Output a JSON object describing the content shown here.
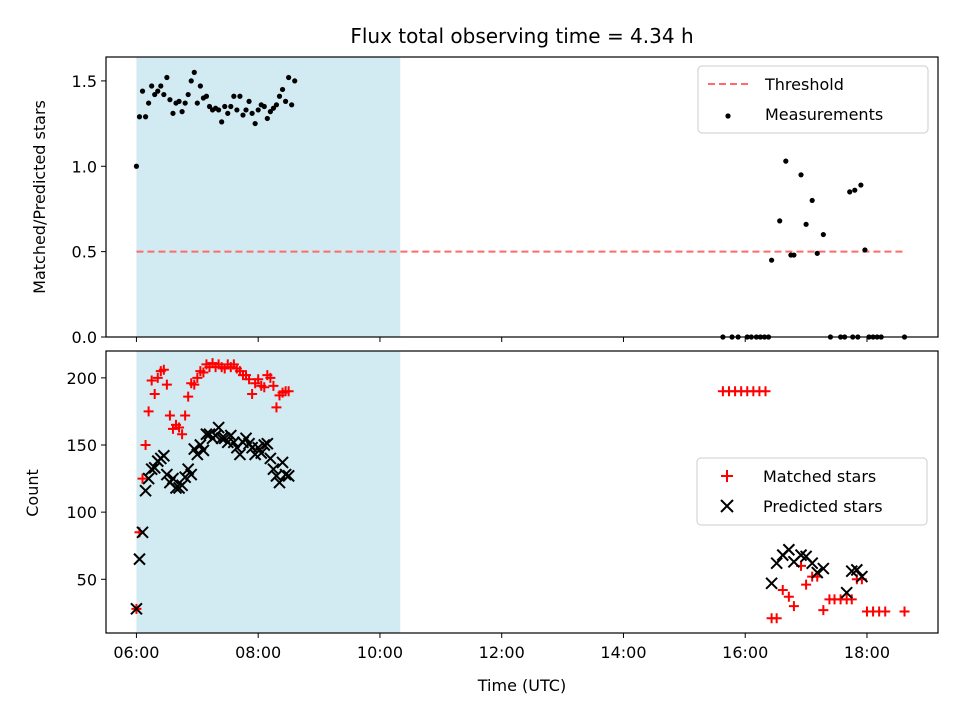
{
  "chart_data": [
    {
      "type": "scatter",
      "title": "Flux total observing time = 4.34 h",
      "xlabel": "",
      "ylabel": "Matched/Predicted stars",
      "xlim": [
        "05:30",
        "19:10"
      ],
      "ylim": [
        0,
        1.64
      ],
      "yticks": [
        0,
        0.5,
        1.0,
        1.5
      ],
      "ytick_labels": [
        "0.0",
        "0.5",
        "1.0",
        "1.5"
      ],
      "shaded_interval": [
        "06:00",
        "10:20"
      ],
      "shade_color": "#add8e6",
      "legend_position": "upper right",
      "legend": [
        "Threshold",
        "Measurements"
      ],
      "series": [
        {
          "name": "Threshold",
          "style": "dashed-line",
          "color": "#ff6a6a",
          "points": [
            [
              "06:00",
              0.5
            ],
            [
              "18:37",
              0.5
            ]
          ]
        },
        {
          "name": "Measurements",
          "style": "dot",
          "color": "#000000",
          "points": [
            [
              "06:00",
              1.0
            ],
            [
              "06:03",
              1.29
            ],
            [
              "06:06",
              1.44
            ],
            [
              "06:09",
              1.29
            ],
            [
              "06:12",
              1.37
            ],
            [
              "06:15",
              1.47
            ],
            [
              "06:18",
              1.42
            ],
            [
              "06:21",
              1.44
            ],
            [
              "06:24",
              1.47
            ],
            [
              "06:27",
              1.42
            ],
            [
              "06:30",
              1.52
            ],
            [
              "06:33",
              1.39
            ],
            [
              "06:36",
              1.31
            ],
            [
              "06:39",
              1.37
            ],
            [
              "06:42",
              1.38
            ],
            [
              "06:45",
              1.32
            ],
            [
              "06:48",
              1.37
            ],
            [
              "06:51",
              1.42
            ],
            [
              "06:54",
              1.5
            ],
            [
              "06:57",
              1.55
            ],
            [
              "07:00",
              1.37
            ],
            [
              "07:03",
              1.47
            ],
            [
              "07:06",
              1.4
            ],
            [
              "07:09",
              1.41
            ],
            [
              "07:12",
              1.35
            ],
            [
              "07:15",
              1.33
            ],
            [
              "07:18",
              1.34
            ],
            [
              "07:21",
              1.33
            ],
            [
              "07:24",
              1.26
            ],
            [
              "07:27",
              1.35
            ],
            [
              "07:30",
              1.31
            ],
            [
              "07:33",
              1.35
            ],
            [
              "07:36",
              1.41
            ],
            [
              "07:39",
              1.33
            ],
            [
              "07:42",
              1.41
            ],
            [
              "07:45",
              1.3
            ],
            [
              "07:48",
              1.33
            ],
            [
              "07:51",
              1.38
            ],
            [
              "07:54",
              1.31
            ],
            [
              "07:57",
              1.25
            ],
            [
              "08:00",
              1.33
            ],
            [
              "08:03",
              1.36
            ],
            [
              "08:06",
              1.35
            ],
            [
              "08:09",
              1.28
            ],
            [
              "08:12",
              1.32
            ],
            [
              "08:15",
              1.34
            ],
            [
              "08:18",
              1.36
            ],
            [
              "08:21",
              1.41
            ],
            [
              "08:24",
              1.45
            ],
            [
              "08:27",
              1.38
            ],
            [
              "08:30",
              1.52
            ],
            [
              "08:33",
              1.36
            ],
            [
              "08:36",
              1.5
            ],
            [
              "15:38",
              0.0
            ],
            [
              "15:47",
              0.0
            ],
            [
              "15:53",
              0.0
            ],
            [
              "16:02",
              0.0
            ],
            [
              "16:06",
              0.0
            ],
            [
              "16:11",
              0.0
            ],
            [
              "16:15",
              0.0
            ],
            [
              "16:19",
              0.0
            ],
            [
              "16:23",
              0.0
            ],
            [
              "16:26",
              0.45
            ],
            [
              "16:34",
              0.68
            ],
            [
              "16:40",
              1.03
            ],
            [
              "16:45",
              0.48
            ],
            [
              "16:48",
              0.48
            ],
            [
              "16:55",
              0.95
            ],
            [
              "17:00",
              0.66
            ],
            [
              "17:06",
              0.8
            ],
            [
              "17:11",
              0.49
            ],
            [
              "17:17",
              0.6
            ],
            [
              "17:24",
              0.0
            ],
            [
              "17:34",
              0.0
            ],
            [
              "17:38",
              0.0
            ],
            [
              "17:43",
              0.85
            ],
            [
              "17:46",
              0.0
            ],
            [
              "17:48",
              0.86
            ],
            [
              "17:51",
              0.0
            ],
            [
              "17:54",
              0.89
            ],
            [
              "17:58",
              0.51
            ],
            [
              "18:02",
              0.0
            ],
            [
              "18:06",
              0.0
            ],
            [
              "18:10",
              0.0
            ],
            [
              "18:14",
              0.0
            ],
            [
              "18:37",
              0.0
            ]
          ]
        }
      ]
    },
    {
      "type": "scatter",
      "title": "",
      "xlabel": "Time (UTC)",
      "ylabel": "Count",
      "xlim": [
        "05:30",
        "19:10"
      ],
      "ylim": [
        10,
        220
      ],
      "yticks": [
        50,
        100,
        150,
        200
      ],
      "ytick_labels": [
        "50",
        "100",
        "150",
        "200"
      ],
      "xticks": [
        "06:00",
        "08:00",
        "10:00",
        "12:00",
        "14:00",
        "16:00",
        "18:00"
      ],
      "shaded_interval": [
        "06:00",
        "10:20"
      ],
      "shade_color": "#add8e6",
      "legend_position": "center right",
      "legend": [
        "Matched stars",
        "Predicted stars"
      ],
      "series": [
        {
          "name": "Matched stars",
          "marker": "plus",
          "color": "#ff0000",
          "points": [
            [
              "06:00",
              28
            ],
            [
              "06:03",
              85
            ],
            [
              "06:06",
              125
            ],
            [
              "06:09",
              150
            ],
            [
              "06:12",
              175
            ],
            [
              "06:15",
              198
            ],
            [
              "06:18",
              188
            ],
            [
              "06:21",
              200
            ],
            [
              "06:24",
              205
            ],
            [
              "06:27",
              206
            ],
            [
              "06:30",
              195
            ],
            [
              "06:33",
              172
            ],
            [
              "06:36",
              162
            ],
            [
              "06:39",
              165
            ],
            [
              "06:42",
              163
            ],
            [
              "06:45",
              158
            ],
            [
              "06:48",
              172
            ],
            [
              "06:51",
              186
            ],
            [
              "06:54",
              196
            ],
            [
              "06:57",
              195
            ],
            [
              "07:00",
              200
            ],
            [
              "07:03",
              205
            ],
            [
              "07:06",
              204
            ],
            [
              "07:09",
              210
            ],
            [
              "07:12",
              208
            ],
            [
              "07:15",
              211
            ],
            [
              "07:18",
              208
            ],
            [
              "07:21",
              210
            ],
            [
              "07:24",
              208
            ],
            [
              "07:27",
              207
            ],
            [
              "07:30",
              210
            ],
            [
              "07:33",
              208
            ],
            [
              "07:36",
              210
            ],
            [
              "07:39",
              207
            ],
            [
              "07:42",
              205
            ],
            [
              "07:45",
              202
            ],
            [
              "07:48",
              202
            ],
            [
              "07:51",
              199
            ],
            [
              "07:54",
              188
            ],
            [
              "07:57",
              196
            ],
            [
              "08:00",
              199
            ],
            [
              "08:03",
              194
            ],
            [
              "08:06",
              193
            ],
            [
              "08:09",
              202
            ],
            [
              "08:12",
              200
            ],
            [
              "08:15",
              194
            ],
            [
              "08:18",
              178
            ],
            [
              "08:21",
              187
            ],
            [
              "08:24",
              189
            ],
            [
              "08:27",
              190
            ],
            [
              "08:30",
              190
            ],
            [
              "15:38",
              190
            ],
            [
              "15:44",
              190
            ],
            [
              "15:50",
              190
            ],
            [
              "15:56",
              190
            ],
            [
              "16:02",
              190
            ],
            [
              "16:08",
              190
            ],
            [
              "16:14",
              190
            ],
            [
              "16:20",
              190
            ],
            [
              "16:26",
              21
            ],
            [
              "16:31",
              21
            ],
            [
              "16:37",
              42
            ],
            [
              "16:43",
              37
            ],
            [
              "16:48",
              30
            ],
            [
              "16:55",
              60
            ],
            [
              "17:00",
              46
            ],
            [
              "17:06",
              52
            ],
            [
              "17:11",
              52
            ],
            [
              "17:17",
              27
            ],
            [
              "17:23",
              35
            ],
            [
              "17:28",
              35
            ],
            [
              "17:34",
              35
            ],
            [
              "17:40",
              35
            ],
            [
              "17:45",
              35
            ],
            [
              "17:50",
              50
            ],
            [
              "17:55",
              50
            ],
            [
              "18:00",
              26
            ],
            [
              "18:06",
              26
            ],
            [
              "18:12",
              26
            ],
            [
              "18:18",
              26
            ],
            [
              "18:37",
              26
            ]
          ]
        },
        {
          "name": "Predicted stars",
          "marker": "x",
          "color": "#000000",
          "points": [
            [
              "06:00",
              28
            ],
            [
              "06:03",
              65
            ],
            [
              "06:06",
              85
            ],
            [
              "06:09",
              116
            ],
            [
              "06:12",
              125
            ],
            [
              "06:15",
              132
            ],
            [
              "06:18",
              133
            ],
            [
              "06:21",
              138
            ],
            [
              "06:24",
              140
            ],
            [
              "06:27",
              142
            ],
            [
              "06:30",
              128
            ],
            [
              "06:33",
              122
            ],
            [
              "06:36",
              125
            ],
            [
              "06:39",
              118
            ],
            [
              "06:42",
              118
            ],
            [
              "06:45",
              120
            ],
            [
              "06:48",
              126
            ],
            [
              "06:51",
              132
            ],
            [
              "06:54",
              128
            ],
            [
              "06:57",
              147
            ],
            [
              "07:00",
              143
            ],
            [
              "07:03",
              150
            ],
            [
              "07:06",
              146
            ],
            [
              "07:09",
              158
            ],
            [
              "07:12",
              158
            ],
            [
              "07:15",
              155
            ],
            [
              "07:18",
              157
            ],
            [
              "07:21",
              163
            ],
            [
              "07:24",
              155
            ],
            [
              "07:27",
              155
            ],
            [
              "07:30",
              152
            ],
            [
              "07:33",
              157
            ],
            [
              "07:36",
              152
            ],
            [
              "07:39",
              148
            ],
            [
              "07:42",
              143
            ],
            [
              "07:45",
              152
            ],
            [
              "07:48",
              155
            ],
            [
              "07:51",
              151
            ],
            [
              "07:54",
              148
            ],
            [
              "07:57",
              143
            ],
            [
              "08:00",
              148
            ],
            [
              "08:03",
              144
            ],
            [
              "08:06",
              150
            ],
            [
              "08:09",
              151
            ],
            [
              "08:12",
              140
            ],
            [
              "08:15",
              132
            ],
            [
              "08:18",
              127
            ],
            [
              "08:21",
              122
            ],
            [
              "08:24",
              137
            ],
            [
              "08:27",
              128
            ],
            [
              "08:30",
              127
            ],
            [
              "16:26",
              47
            ],
            [
              "16:31",
              62
            ],
            [
              "16:37",
              68
            ],
            [
              "16:43",
              72
            ],
            [
              "16:48",
              63
            ],
            [
              "16:55",
              68
            ],
            [
              "17:00",
              67
            ],
            [
              "17:06",
              62
            ],
            [
              "17:11",
              55
            ],
            [
              "17:17",
              58
            ],
            [
              "17:40",
              40
            ],
            [
              "17:45",
              56
            ],
            [
              "17:50",
              57
            ],
            [
              "17:55",
              52
            ]
          ]
        }
      ]
    }
  ]
}
